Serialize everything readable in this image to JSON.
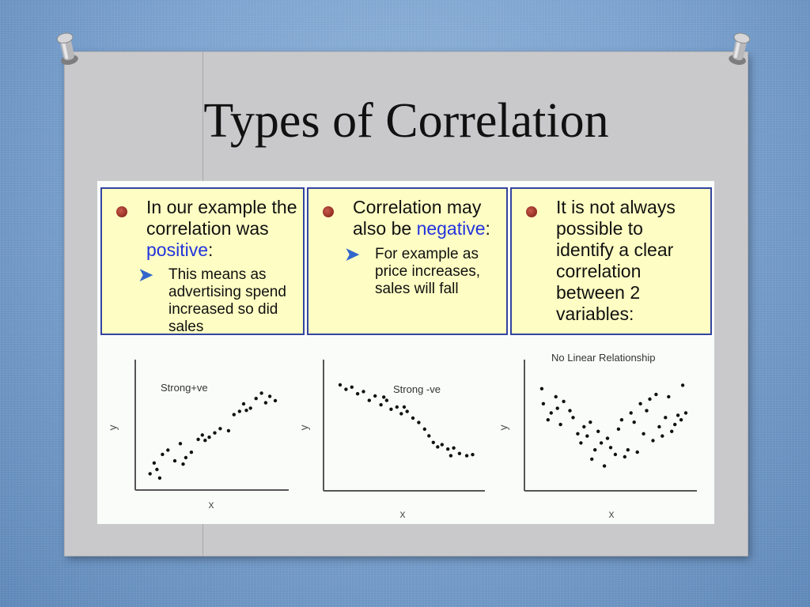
{
  "slide": {
    "title": "Types of Correlation"
  },
  "panels": [
    {
      "main_before": "In our example the correlation was ",
      "main_accent": "positive",
      "main_after": ":",
      "sub": "This means as advertising spend increased so did sales"
    },
    {
      "main_before": "Correlation may also be ",
      "main_accent": "negative",
      "main_after": ":",
      "sub": "For example as price increases, sales will fall"
    },
    {
      "main_before": "It is not always possible to identify a clear correlation between 2 variables:",
      "main_accent": "",
      "main_after": "",
      "sub": ""
    }
  ],
  "colors": {
    "accent_text": "#2233dd",
    "panel_fill": "#fefec4",
    "panel_border": "#3344a0"
  },
  "chart_data": [
    {
      "type": "scatter",
      "title": "Strong+ve",
      "xlabel": "x",
      "ylabel": "y",
      "xlim": [
        0,
        10
      ],
      "ylim": [
        0,
        10
      ],
      "points": [
        [
          0.5,
          1.0
        ],
        [
          0.8,
          2.0
        ],
        [
          1.2,
          0.6
        ],
        [
          1.4,
          2.8
        ],
        [
          1.8,
          3.2
        ],
        [
          2.3,
          2.2
        ],
        [
          2.7,
          3.8
        ],
        [
          3.1,
          2.5
        ],
        [
          3.5,
          3.0
        ],
        [
          4.0,
          4.2
        ],
        [
          4.3,
          4.6
        ],
        [
          4.8,
          4.4
        ],
        [
          5.2,
          4.8
        ],
        [
          5.6,
          5.2
        ],
        [
          6.2,
          5.0
        ],
        [
          6.6,
          6.5
        ],
        [
          7.0,
          6.8
        ],
        [
          7.3,
          7.5
        ],
        [
          7.8,
          7.1
        ],
        [
          8.2,
          8.0
        ],
        [
          8.6,
          8.5
        ],
        [
          8.9,
          7.6
        ],
        [
          9.2,
          8.2
        ],
        [
          9.6,
          7.8
        ],
        [
          7.5,
          6.9
        ],
        [
          4.5,
          4.1
        ],
        [
          2.9,
          1.9
        ],
        [
          1.0,
          1.4
        ]
      ]
    },
    {
      "type": "scatter",
      "title": "Strong -ve",
      "xlabel": "x",
      "ylabel": "y",
      "xlim": [
        0,
        10
      ],
      "ylim": [
        0,
        10
      ],
      "points": [
        [
          0.6,
          9.0
        ],
        [
          1.0,
          8.6
        ],
        [
          1.4,
          8.8
        ],
        [
          1.8,
          8.2
        ],
        [
          2.2,
          8.4
        ],
        [
          2.6,
          7.6
        ],
        [
          3.0,
          8.0
        ],
        [
          3.4,
          7.2
        ],
        [
          3.8,
          7.6
        ],
        [
          4.1,
          6.8
        ],
        [
          4.5,
          7.0
        ],
        [
          4.8,
          6.4
        ],
        [
          5.2,
          6.6
        ],
        [
          5.6,
          6.0
        ],
        [
          6.0,
          5.6
        ],
        [
          6.4,
          5.0
        ],
        [
          6.7,
          4.4
        ],
        [
          7.0,
          3.8
        ],
        [
          7.3,
          3.4
        ],
        [
          7.6,
          3.6
        ],
        [
          8.0,
          3.2
        ],
        [
          8.4,
          3.3
        ],
        [
          8.8,
          2.8
        ],
        [
          9.3,
          2.6
        ],
        [
          9.7,
          2.7
        ],
        [
          5.0,
          7.0
        ],
        [
          3.6,
          7.9
        ],
        [
          8.2,
          2.6
        ]
      ]
    },
    {
      "type": "scatter",
      "title": "No Linear Relationship",
      "xlabel": "x",
      "ylabel": "y",
      "xlim": [
        0,
        10
      ],
      "ylim": [
        0,
        10
      ],
      "points": [
        [
          0.6,
          8.3
        ],
        [
          0.7,
          7.0
        ],
        [
          1.0,
          5.6
        ],
        [
          1.2,
          6.2
        ],
        [
          1.5,
          7.6
        ],
        [
          1.6,
          6.6
        ],
        [
          1.8,
          5.2
        ],
        [
          2.0,
          7.2
        ],
        [
          2.4,
          6.4
        ],
        [
          2.6,
          5.8
        ],
        [
          2.9,
          4.4
        ],
        [
          3.1,
          3.6
        ],
        [
          3.3,
          5.0
        ],
        [
          3.5,
          4.2
        ],
        [
          3.7,
          5.4
        ],
        [
          3.8,
          2.2
        ],
        [
          4.0,
          3.0
        ],
        [
          4.2,
          4.6
        ],
        [
          4.4,
          3.6
        ],
        [
          4.6,
          1.6
        ],
        [
          4.8,
          4.0
        ],
        [
          5.0,
          3.2
        ],
        [
          5.3,
          2.6
        ],
        [
          5.5,
          4.8
        ],
        [
          5.7,
          5.6
        ],
        [
          5.9,
          2.4
        ],
        [
          6.1,
          3.0
        ],
        [
          6.3,
          6.2
        ],
        [
          6.5,
          5.4
        ],
        [
          6.7,
          2.8
        ],
        [
          6.9,
          7.0
        ],
        [
          7.1,
          4.4
        ],
        [
          7.3,
          6.4
        ],
        [
          7.5,
          7.4
        ],
        [
          7.7,
          3.8
        ],
        [
          7.9,
          7.8
        ],
        [
          8.1,
          5.0
        ],
        [
          8.3,
          4.2
        ],
        [
          8.5,
          5.8
        ],
        [
          8.7,
          7.6
        ],
        [
          8.9,
          4.6
        ],
        [
          9.1,
          5.2
        ],
        [
          9.3,
          6.0
        ],
        [
          9.5,
          5.6
        ],
        [
          9.6,
          8.6
        ],
        [
          9.8,
          6.2
        ]
      ]
    }
  ]
}
